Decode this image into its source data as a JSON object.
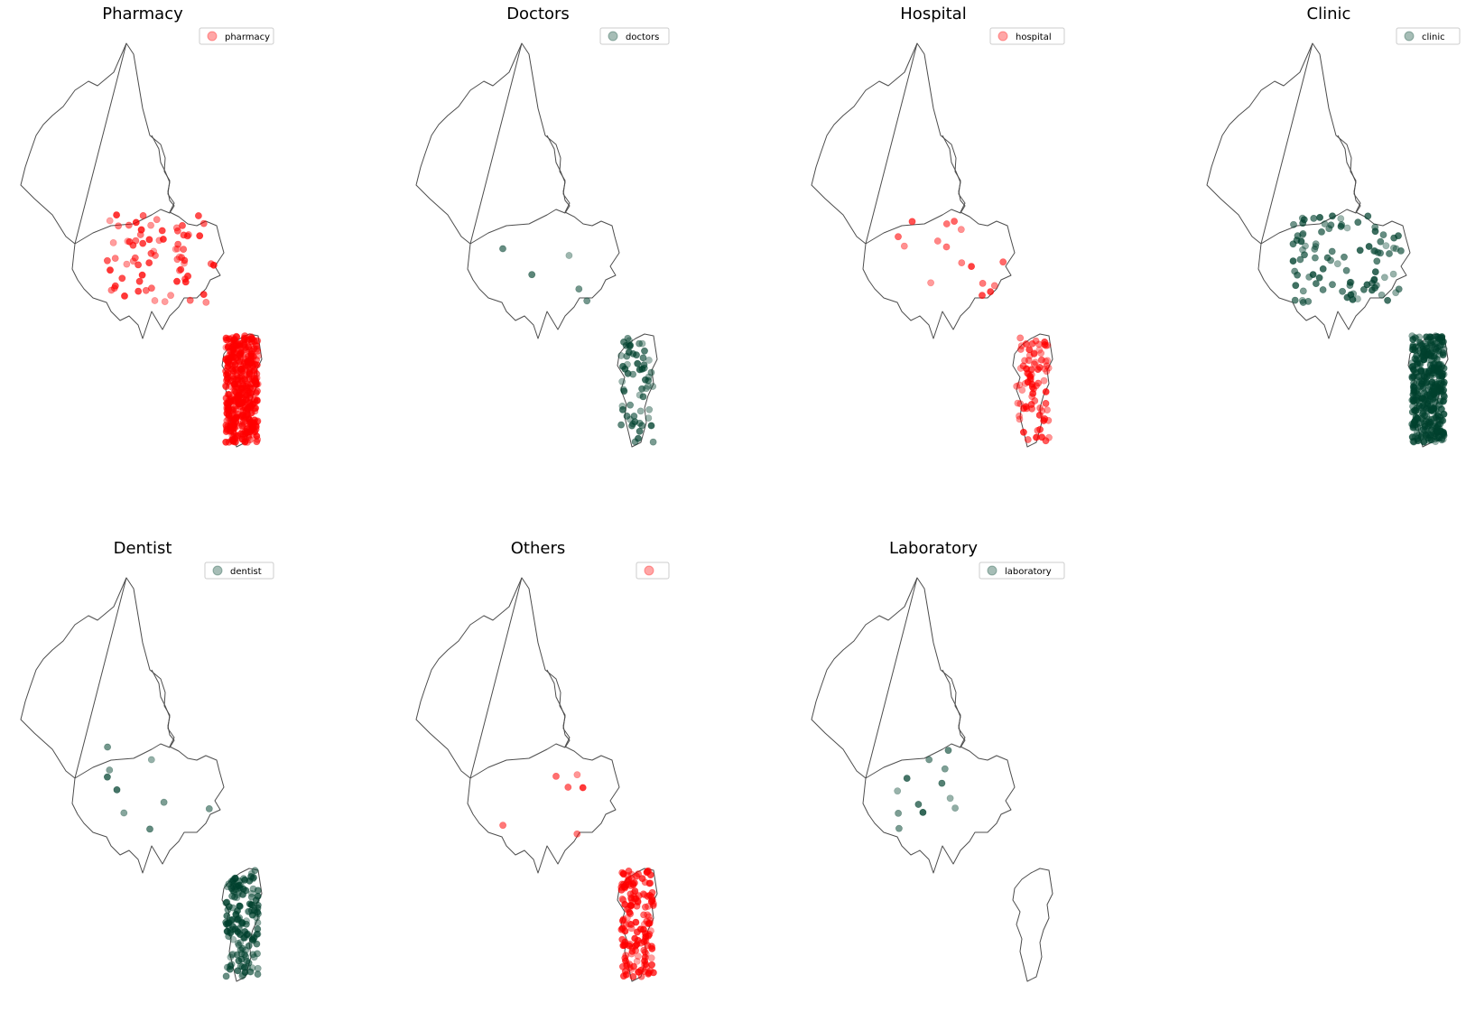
{
  "figure": {
    "colors": {
      "red": "#ff0000",
      "dark_green": "#00412e",
      "outline": "#4d4d4d"
    },
    "panels": [
      {
        "title": "Pharmacy",
        "legend": "pharmacy",
        "color": "#ff0000",
        "north_points": 75,
        "south_points": 420
      },
      {
        "title": "Doctors",
        "legend": "doctors",
        "color": "#00412e",
        "north_points": 5,
        "south_points": 60
      },
      {
        "title": "Hospital",
        "legend": "hospital",
        "color": "#ff0000",
        "north_points": 16,
        "south_points": 80
      },
      {
        "title": "Clinic",
        "legend": "clinic",
        "color": "#00412e",
        "north_points": 95,
        "south_points": 380
      },
      {
        "title": "Dentist",
        "legend": "dentist",
        "color": "#00412e",
        "north_points": 9,
        "south_points": 150
      },
      {
        "title": "Others",
        "legend": "",
        "color": "#ff0000",
        "north_points": 6,
        "south_points": 160
      },
      {
        "title": "Laboratory",
        "legend": "laboratory",
        "color": "#00412e",
        "north_points": 12,
        "south_points": 0
      }
    ]
  }
}
